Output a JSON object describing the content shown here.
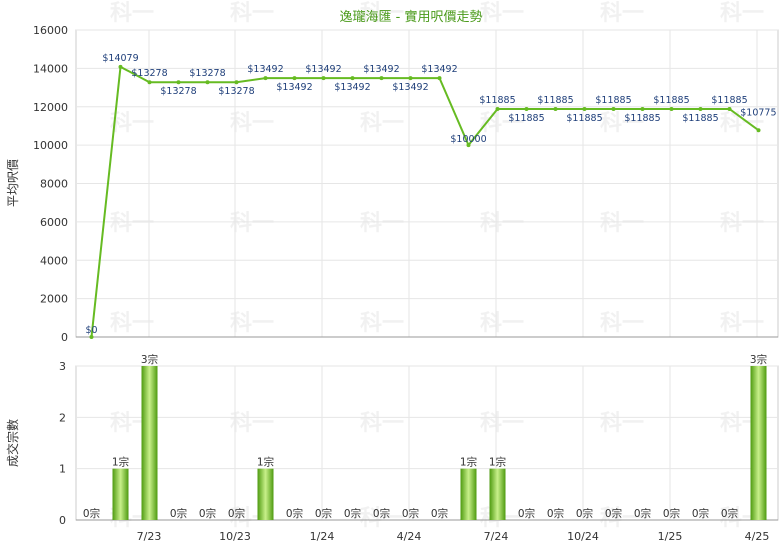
{
  "chart_data": [
    {
      "type": "line",
      "title": "逸瓏海匯 - 實用呎價走勢",
      "ylabel": "平均呎價",
      "ylim": [
        0,
        16000
      ],
      "yticks": [
        0,
        2000,
        4000,
        6000,
        8000,
        10000,
        12000,
        14000,
        16000
      ],
      "xticks": [
        "7/23",
        "10/23",
        "1/24",
        "4/24",
        "7/24",
        "10/24",
        "1/25",
        "4/25"
      ],
      "grid": true,
      "values": [
        0,
        14079,
        13278,
        13278,
        13278,
        13278,
        13492,
        13492,
        13492,
        13492,
        13492,
        13492,
        13492,
        10000,
        11885,
        11885,
        11885,
        11885,
        11885,
        11885,
        11885,
        11885,
        11885,
        10775
      ],
      "data_labels": [
        "$0",
        "$14079",
        "$13278",
        "$13278",
        "$13278",
        "$13278",
        "$13492",
        "$13492",
        "$13492",
        "$13492",
        "$13492",
        "$13492",
        "$13492",
        "$10000",
        "$11885",
        "$11885",
        "$11885",
        "$11885",
        "$11885",
        "$11885",
        "$11885",
        "$11885",
        "$11885",
        "$10775"
      ]
    },
    {
      "type": "bar",
      "ylabel": "成交宗數",
      "ylim": [
        0,
        3
      ],
      "yticks": [
        0,
        1,
        2,
        3
      ],
      "xticks": [
        "7/23",
        "10/23",
        "1/24",
        "4/24",
        "7/24",
        "10/24",
        "1/25",
        "4/25"
      ],
      "grid": true,
      "values": [
        0,
        1,
        3,
        0,
        0,
        0,
        1,
        0,
        0,
        0,
        0,
        0,
        0,
        1,
        1,
        0,
        0,
        0,
        0,
        0,
        0,
        0,
        0,
        3
      ],
      "data_labels": [
        "0宗",
        "1宗",
        "3宗",
        "0宗",
        "0宗",
        "0宗",
        "1宗",
        "0宗",
        "0宗",
        "0宗",
        "0宗",
        "0宗",
        "0宗",
        "1宗",
        "1宗",
        "0宗",
        "0宗",
        "0宗",
        "0宗",
        "0宗",
        "0宗",
        "0宗",
        "0宗",
        "3宗"
      ]
    }
  ],
  "watermark": "科一",
  "colors": {
    "line": "#66bb22",
    "bar_dark": "#4e9a10",
    "bar_light": "#c8f08a",
    "grid": "#e6e6e6",
    "axis": "#999999"
  }
}
